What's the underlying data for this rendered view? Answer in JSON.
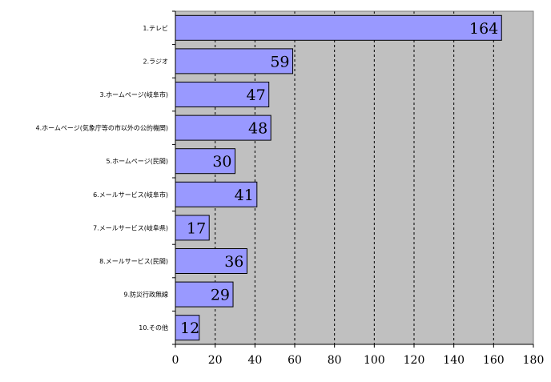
{
  "chart_data": {
    "type": "bar",
    "orientation": "horizontal",
    "categories": [
      "1.テレビ",
      "2.ラジオ",
      "3.ホームページ(岐阜市)",
      "4.ホームページ(気象庁等の市以外の公的機関)",
      "5.ホームページ(民間)",
      "6.メールサービス(岐阜市)",
      "7.メールサービス(岐阜県)",
      "8.メールサービス(民間)",
      "9.防災行政無線",
      "10.その他"
    ],
    "values": [
      164,
      59,
      47,
      48,
      30,
      41,
      17,
      36,
      29,
      12
    ],
    "xlim": [
      0,
      180
    ],
    "xticks": [
      0,
      20,
      40,
      60,
      80,
      100,
      120,
      140,
      160,
      180
    ],
    "title": "",
    "xlabel": "",
    "ylabel": "",
    "grid": "vertical dashed",
    "legend": "none",
    "colors": {
      "plot_background": "#c0c0c0",
      "bar_fill": "#9999ff",
      "bar_stroke": "#000000",
      "grid": "#000000"
    }
  }
}
